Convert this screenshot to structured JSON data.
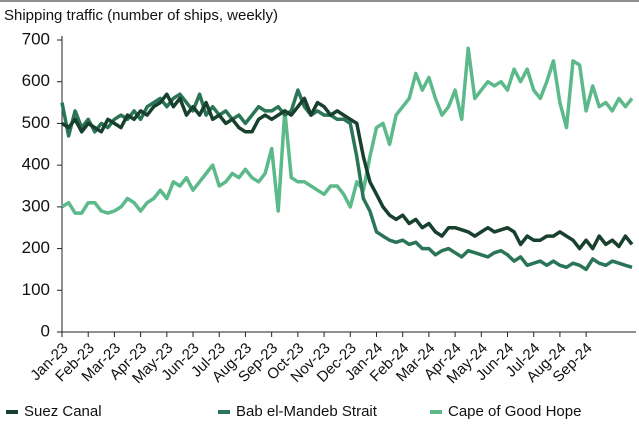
{
  "chart_data": {
    "type": "line",
    "title": "Shipping traffic (number of ships, weekly)",
    "categories": [
      "Jan-23",
      null,
      null,
      null,
      "Feb-23",
      null,
      null,
      null,
      "Mar-23",
      null,
      null,
      null,
      "Apr-23",
      null,
      null,
      null,
      "May-23",
      null,
      null,
      null,
      "Jun-23",
      null,
      null,
      null,
      "Jul-23",
      null,
      null,
      null,
      "Aug-23",
      null,
      null,
      null,
      "Sep-23",
      null,
      null,
      null,
      "Oct-23",
      null,
      null,
      null,
      "Nov-23",
      null,
      null,
      null,
      "Dec-23",
      null,
      null,
      null,
      "Jan-24",
      null,
      null,
      null,
      "Feb-24",
      null,
      null,
      null,
      "Mar-24",
      null,
      null,
      null,
      "Apr-24",
      null,
      null,
      null,
      "May-24",
      null,
      null,
      null,
      "Jun-24",
      null,
      null,
      null,
      "Jul-24",
      null,
      null,
      null,
      "Aug-24",
      null,
      null,
      null,
      "Sep-24",
      null,
      null,
      null,
      null,
      null,
      null,
      null
    ],
    "series": [
      {
        "name": "Suez Canal",
        "color": "#17402f",
        "values": [
          500,
          490,
          510,
          480,
          500,
          490,
          480,
          510,
          500,
          490,
          520,
          510,
          530,
          520,
          540,
          550,
          570,
          540,
          560,
          520,
          540,
          520,
          550,
          510,
          520,
          500,
          510,
          490,
          480,
          480,
          510,
          520,
          510,
          520,
          530,
          520,
          540,
          560,
          520,
          550,
          540,
          520,
          530,
          520,
          510,
          500,
          420,
          360,
          330,
          300,
          280,
          270,
          280,
          260,
          270,
          250,
          260,
          240,
          230,
          250,
          250,
          245,
          240,
          230,
          240,
          250,
          240,
          245,
          250,
          240,
          210,
          230,
          220,
          220,
          230,
          230,
          240,
          230,
          220,
          200,
          220,
          200,
          230,
          210,
          220,
          205,
          230,
          210
        ]
      },
      {
        "name": "Bab el-Mandeb Strait",
        "color": "#2a7457",
        "values": [
          550,
          470,
          530,
          490,
          510,
          480,
          500,
          490,
          510,
          520,
          510,
          530,
          510,
          540,
          550,
          560,
          540,
          560,
          570,
          550,
          530,
          570,
          520,
          540,
          520,
          530,
          510,
          520,
          500,
          520,
          540,
          530,
          530,
          540,
          520,
          530,
          580,
          540,
          520,
          530,
          520,
          520,
          510,
          510,
          500,
          420,
          320,
          290,
          240,
          230,
          220,
          215,
          220,
          210,
          215,
          200,
          200,
          185,
          195,
          200,
          190,
          180,
          195,
          190,
          185,
          180,
          190,
          195,
          185,
          170,
          180,
          160,
          165,
          170,
          160,
          170,
          160,
          155,
          165,
          160,
          150,
          175,
          165,
          160,
          170,
          165,
          160,
          155
        ]
      },
      {
        "name": "Cape of Good Hope",
        "color": "#5cb98a",
        "values": [
          300,
          310,
          285,
          285,
          310,
          310,
          290,
          285,
          290,
          300,
          320,
          310,
          290,
          310,
          320,
          340,
          320,
          360,
          350,
          370,
          340,
          360,
          380,
          400,
          350,
          360,
          380,
          370,
          390,
          370,
          360,
          380,
          440,
          290,
          530,
          370,
          360,
          360,
          350,
          340,
          330,
          350,
          350,
          330,
          300,
          360,
          340,
          420,
          490,
          500,
          450,
          520,
          540,
          560,
          620,
          580,
          610,
          560,
          520,
          540,
          580,
          510,
          680,
          560,
          580,
          600,
          590,
          600,
          580,
          630,
          600,
          630,
          580,
          560,
          600,
          650,
          550,
          490,
          650,
          640,
          530,
          590,
          540,
          550,
          530,
          560,
          540,
          560
        ]
      }
    ],
    "ylim": [
      0,
      700
    ],
    "yticks": [
      0,
      100,
      200,
      300,
      400,
      500,
      600,
      700
    ],
    "grid": false
  }
}
